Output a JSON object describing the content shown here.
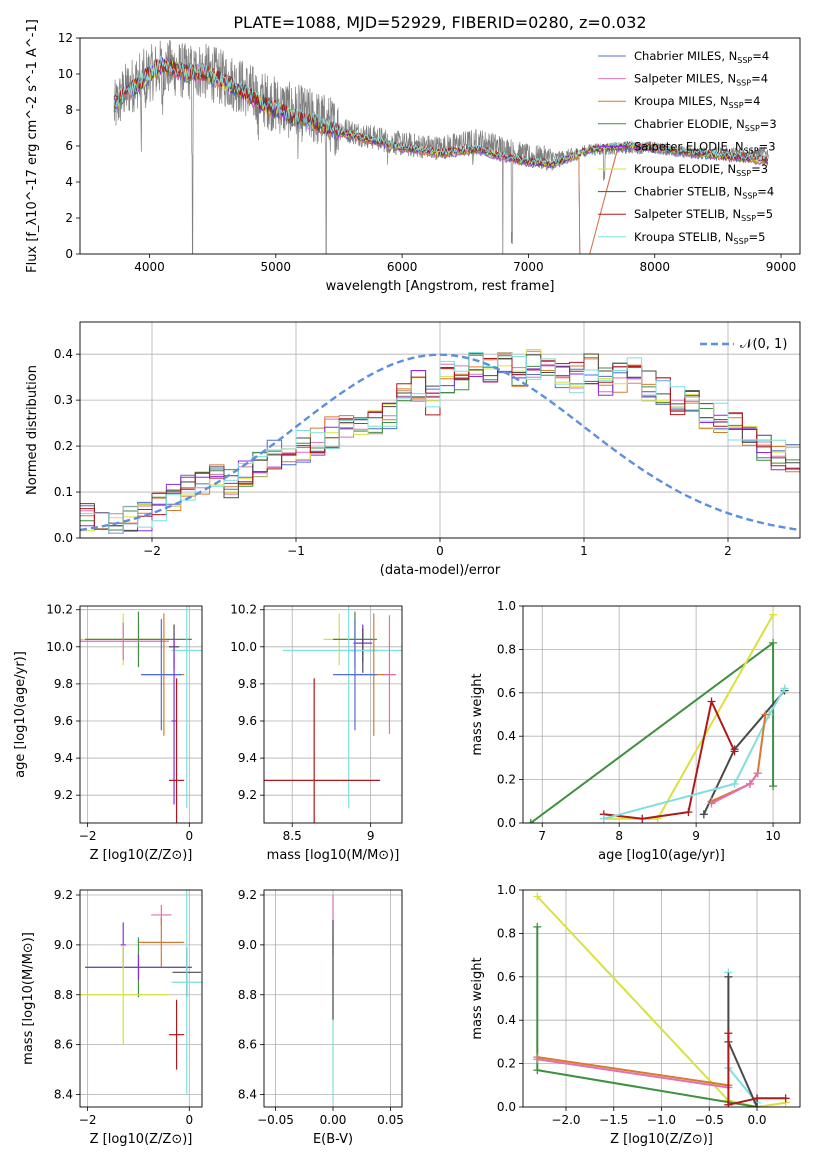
{
  "title": "PLATE=1088, MJD=52929, FIBERID=0280, z=0.032",
  "colors": {
    "Chabrier MILES": "#4f6fd1",
    "Salpeter MILES": "#e070b0",
    "Kroupa MILES": "#d77a2d",
    "Chabrier ELODIE": "#3f8f3f",
    "Salpeter ELODIE": "#8a2be2",
    "Kroupa ELODIE": "#d9e13c",
    "Chabrier STELIB": "#4a4a4a",
    "Salpeter STELIB": "#b0181c",
    "Kroupa STELIB": "#7fdede",
    "data": "#7f7f7f",
    "normal": "#5b8fe0"
  },
  "chart_data": [
    {
      "type": "line",
      "id": "spectrum",
      "xlabel": "wavelength [Angstrom, rest frame]",
      "ylabel": "Flux [f_λ10^-17 erg cm^-2 s^-1 A^-1]",
      "xlim": [
        3450,
        9150
      ],
      "ylim": [
        0,
        12
      ],
      "xticks": [
        4000,
        5000,
        6000,
        7000,
        8000,
        9000
      ],
      "yticks": [
        0,
        2,
        4,
        6,
        8,
        10,
        12
      ],
      "grid": false,
      "legend_position": "top-right",
      "legend": [
        {
          "label": "Chabrier MILES, N_SSP=4",
          "key": "Chabrier MILES"
        },
        {
          "label": "Salpeter MILES, N_SSP=4",
          "key": "Salpeter MILES"
        },
        {
          "label": "Kroupa MILES, N_SSP=4",
          "key": "Kroupa MILES"
        },
        {
          "label": "Chabrier ELODIE, N_SSP=3",
          "key": "Chabrier ELODIE"
        },
        {
          "label": "Salpeter ELODIE, N_SSP=3",
          "key": "Salpeter ELODIE"
        },
        {
          "label": "Kroupa ELODIE, N_SSP=3",
          "key": "Kroupa ELODIE"
        },
        {
          "label": "Chabrier STELIB, N_SSP=4",
          "key": "Chabrier STELIB"
        },
        {
          "label": "Salpeter STELIB, N_SSP=5",
          "key": "Salpeter STELIB"
        },
        {
          "label": "Kroupa STELIB, N_SSP=5",
          "key": "Kroupa STELIB"
        }
      ],
      "data_continuum": [
        [
          3720,
          8.0
        ],
        [
          3800,
          9.0
        ],
        [
          3900,
          9.6
        ],
        [
          4000,
          10.0
        ],
        [
          4100,
          10.4
        ],
        [
          4200,
          10.3
        ],
        [
          4300,
          10.1
        ],
        [
          4400,
          10.2
        ],
        [
          4500,
          10.0
        ],
        [
          4700,
          9.4
        ],
        [
          4900,
          8.6
        ],
        [
          5100,
          8.0
        ],
        [
          5300,
          7.6
        ],
        [
          5500,
          7.0
        ],
        [
          5700,
          6.6
        ],
        [
          6000,
          6.1
        ],
        [
          6300,
          5.9
        ],
        [
          6600,
          6.3
        ],
        [
          6800,
          5.9
        ],
        [
          7000,
          5.4
        ],
        [
          7200,
          5.3
        ],
        [
          7500,
          5.8
        ],
        [
          7800,
          5.9
        ],
        [
          8000,
          5.9
        ],
        [
          8300,
          5.6
        ],
        [
          8600,
          5.6
        ],
        [
          8900,
          5.6
        ]
      ],
      "model_continuum": [
        [
          3720,
          8.3
        ],
        [
          3800,
          8.9
        ],
        [
          3900,
          9.3
        ],
        [
          4000,
          10.0
        ],
        [
          4100,
          10.5
        ],
        [
          4200,
          10.3
        ],
        [
          4300,
          10.0
        ],
        [
          4400,
          10.1
        ],
        [
          4500,
          9.8
        ],
        [
          4700,
          9.2
        ],
        [
          4900,
          8.3
        ],
        [
          5100,
          7.7
        ],
        [
          5300,
          7.3
        ],
        [
          5500,
          6.8
        ],
        [
          5700,
          6.4
        ],
        [
          6000,
          5.9
        ],
        [
          6300,
          5.6
        ],
        [
          6600,
          5.8
        ],
        [
          6800,
          5.4
        ],
        [
          7000,
          5.1
        ],
        [
          7200,
          5.0
        ],
        [
          7500,
          5.8
        ],
        [
          7800,
          6.0
        ],
        [
          8000,
          5.9
        ],
        [
          8300,
          5.6
        ],
        [
          8600,
          5.4
        ],
        [
          8900,
          5.2
        ]
      ]
    },
    {
      "type": "line",
      "id": "residuals",
      "xlabel": "(data-model)/error",
      "ylabel": "Normed distribution",
      "xlim": [
        -2.5,
        2.5
      ],
      "ylim": [
        0,
        0.47
      ],
      "xticks": [
        -2,
        -1,
        0,
        1,
        2
      ],
      "yticks": [
        0.0,
        0.1,
        0.2,
        0.3,
        0.4
      ],
      "grid": true,
      "legend_position": "top-right",
      "legend_label": "𝒩(0, 1)",
      "bin_width": 0.1,
      "bins_start": -2.5,
      "base_hist": [
        0.04,
        0.035,
        0.03,
        0.035,
        0.05,
        0.07,
        0.09,
        0.11,
        0.13,
        0.14,
        0.12,
        0.14,
        0.16,
        0.18,
        0.19,
        0.2,
        0.21,
        0.23,
        0.24,
        0.26,
        0.25,
        0.27,
        0.31,
        0.33,
        0.3,
        0.35,
        0.34,
        0.38,
        0.37,
        0.39,
        0.36,
        0.38,
        0.37,
        0.36,
        0.35,
        0.37,
        0.34,
        0.35,
        0.36,
        0.33,
        0.32,
        0.3,
        0.29,
        0.27,
        0.26,
        0.24,
        0.22,
        0.2,
        0.18,
        0.17
      ]
    },
    {
      "type": "scatter",
      "id": "z-age",
      "xlabel": "Z [log10(Z/Z⊙)]",
      "ylabel": "age  [log10(age/yr)]",
      "xlim": [
        -2.15,
        0.25
      ],
      "ylim": [
        9.05,
        10.22
      ],
      "xticks": [
        -2,
        0
      ],
      "yticks": [
        9.2,
        9.4,
        9.6,
        9.8,
        10.0,
        10.2
      ],
      "grid": true,
      "points": [
        {
          "key": "Kroupa ELODIE",
          "x": -1.3,
          "xerr": 0.9,
          "y": 10.04,
          "yerr": 0.14
        },
        {
          "key": "Chabrier ELODIE",
          "x": -1.0,
          "xerr": 1.05,
          "y": 10.04,
          "yerr": 0.15
        },
        {
          "key": "Salpeter MILES",
          "x": -1.3,
          "xerr": 0.9,
          "y": 10.03,
          "yerr": 0.1
        },
        {
          "key": "Chabrier STELIB",
          "x": -0.3,
          "xerr": 0.1,
          "y": 10.0,
          "yerr": 0.12
        },
        {
          "key": "Kroupa STELIB",
          "x": -0.05,
          "xerr": 0.3,
          "y": 9.98,
          "yerr": 0.85
        },
        {
          "key": "Kroupa MILES",
          "x": -0.5,
          "xerr": 0.4,
          "y": 9.85,
          "yerr": 0.33
        },
        {
          "key": "Chabrier MILES",
          "x": -0.55,
          "xerr": 0.4,
          "y": 9.85,
          "yerr": 0.3
        },
        {
          "key": "Salpeter ELODIE",
          "x": -0.3,
          "xerr": 0.05,
          "y": 9.6,
          "yerr": 0.45
        },
        {
          "key": "Salpeter STELIB",
          "x": -0.25,
          "xerr": 0.15,
          "y": 9.28,
          "yerr": 0.55
        }
      ]
    },
    {
      "type": "scatter",
      "id": "mass-age",
      "xlabel": "mass [log10(M/M⊙)]",
      "ylabel": "",
      "xlim": [
        8.32,
        9.2
      ],
      "ylim": [
        9.05,
        10.22
      ],
      "xticks": [
        8.5,
        9.0
      ],
      "yticks": [
        9.2,
        9.4,
        9.6,
        9.8,
        10.0,
        10.2
      ],
      "grid": true,
      "points": [
        {
          "key": "Kroupa ELODIE",
          "x": 8.8,
          "xerr": 0.1,
          "y": 10.04,
          "yerr": 0.14
        },
        {
          "key": "Chabrier ELODIE",
          "x": 8.9,
          "xerr": 0.14,
          "y": 10.04,
          "yerr": 0.15
        },
        {
          "key": "Salpeter ELODIE",
          "x": 8.95,
          "xerr": 0.06,
          "y": 10.02,
          "yerr": 0.1
        },
        {
          "key": "Chabrier STELIB",
          "x": 8.95,
          "xerr": 0.09,
          "y": 9.98,
          "yerr": 0.12
        },
        {
          "key": "Kroupa STELIB",
          "x": 8.86,
          "xerr": 0.42,
          "y": 9.98,
          "yerr": 0.85
        },
        {
          "key": "Kroupa MILES",
          "x": 9.02,
          "xerr": 0.14,
          "y": 9.85,
          "yerr": 0.33
        },
        {
          "key": "Salpeter MILES",
          "x": 9.12,
          "xerr": 0.04,
          "y": 9.85,
          "yerr": 0.32
        },
        {
          "key": "Salpeter STELIB",
          "x": 8.64,
          "xerr": 0.42,
          "y": 9.28,
          "yerr": 0.55
        },
        {
          "key": "Chabrier MILES",
          "x": 8.9,
          "xerr": 0.14,
          "y": 9.85,
          "yerr": 0.3
        }
      ]
    },
    {
      "type": "line",
      "id": "age-weight",
      "xlabel": "age  [log10(age/yr)]",
      "ylabel": "mass weight",
      "xlim": [
        6.75,
        10.35
      ],
      "ylim": [
        0,
        1.0
      ],
      "xticks": [
        7,
        8,
        9,
        10
      ],
      "yticks": [
        0.0,
        0.2,
        0.4,
        0.6,
        0.8,
        1.0
      ],
      "grid": true,
      "series": [
        {
          "key": "Chabrier ELODIE",
          "x": [
            6.85,
            10.0,
            10.0
          ],
          "y": [
            0.0,
            0.83,
            0.17
          ]
        },
        {
          "key": "Kroupa ELODIE",
          "x": [
            7.8,
            8.5,
            10.0
          ],
          "y": [
            0.02,
            0.02,
            0.96
          ]
        },
        {
          "key": "Chabrier STELIB",
          "x": [
            9.1,
            9.5,
            10.15
          ],
          "y": [
            0.04,
            0.34,
            0.61
          ]
        },
        {
          "key": "Salpeter STELIB",
          "x": [
            7.8,
            8.3,
            8.9,
            9.2,
            9.5
          ],
          "y": [
            0.04,
            0.02,
            0.05,
            0.56,
            0.33
          ]
        },
        {
          "key": "Kroupa STELIB",
          "x": [
            7.8,
            9.5,
            9.95,
            10.15
          ],
          "y": [
            0.02,
            0.18,
            0.5,
            0.62
          ]
        },
        {
          "key": "Kroupa MILES",
          "x": [
            9.2,
            9.7,
            9.8,
            9.9
          ],
          "y": [
            0.1,
            0.18,
            0.23,
            0.5
          ]
        },
        {
          "key": "Salpeter MILES",
          "x": [
            9.2,
            9.7,
            9.8
          ],
          "y": [
            0.09,
            0.18,
            0.23
          ]
        }
      ]
    },
    {
      "type": "scatter",
      "id": "z-mass",
      "xlabel": "Z [log10(Z/Z⊙)]",
      "ylabel": "mass [log10(M/M⊙)]",
      "xlim": [
        -2.15,
        0.25
      ],
      "ylim": [
        8.35,
        9.22
      ],
      "xticks": [
        -2,
        0
      ],
      "yticks": [
        8.4,
        8.6,
        8.8,
        9.0,
        9.2
      ],
      "grid": true,
      "points": [
        {
          "key": "Salpeter MILES",
          "x": -0.55,
          "xerr": 0.2,
          "y": 9.12,
          "yerr": 0.04
        },
        {
          "key": "Salpeter ELODIE",
          "x": -1.3,
          "xerr": 0.05,
          "y": 9.0,
          "yerr": 0.09
        },
        {
          "key": "Kroupa MILES",
          "x": -0.55,
          "xerr": 0.45,
          "y": 9.01,
          "yerr": 0.1
        },
        {
          "key": "Chabrier ELODIE",
          "x": -1.0,
          "xerr": 1.05,
          "y": 8.91,
          "yerr": 0.12
        },
        {
          "key": "Salpeter ELODIE",
          "x": -1.0,
          "xerr": 1.05,
          "y": 8.91,
          "yerr": 0.05
        },
        {
          "key": "Chabrier STELIB",
          "x": -0.05,
          "xerr": 0.28,
          "y": 8.89,
          "yerr": 0.1
        },
        {
          "key": "Kroupa STELIB",
          "x": -0.05,
          "xerr": 0.3,
          "y": 8.85,
          "yerr": 0.45
        },
        {
          "key": "Kroupa ELODIE",
          "x": -1.3,
          "xerr": 0.9,
          "y": 8.8,
          "yerr": 0.2
        },
        {
          "key": "Salpeter STELIB",
          "x": -0.25,
          "xerr": 0.15,
          "y": 8.64,
          "yerr": 0.14
        }
      ]
    },
    {
      "type": "scatter",
      "id": "ebv-mass",
      "xlabel": "E(B-V)",
      "ylabel": "",
      "xlim": [
        -0.06,
        0.06
      ],
      "ylim": [
        8.35,
        9.22
      ],
      "xticks": [
        -0.05,
        0.0,
        0.05
      ],
      "xticklabels": [
        "−0.05",
        "0.00",
        "0.05"
      ],
      "yticks": [
        8.4,
        8.6,
        8.8,
        9.0,
        9.2
      ],
      "grid": true,
      "points": [
        {
          "key": "Salpeter MILES",
          "x": 0.0,
          "xerr": 0,
          "y": 9.08,
          "yerr": 0.12
        },
        {
          "key": "Kroupa STELIB",
          "x": 0.0,
          "xerr": 0,
          "y": 8.7,
          "yerr": 0.33
        },
        {
          "key": "Chabrier STELIB",
          "x": 0.0,
          "xerr": 0,
          "y": 8.9,
          "yerr": 0.2
        }
      ]
    },
    {
      "type": "line",
      "id": "z-weight",
      "xlabel": "Z [log10(Z/Z⊙)]",
      "ylabel": "mass weight",
      "xlim": [
        -2.45,
        0.45
      ],
      "ylim": [
        0,
        1.0
      ],
      "xticks": [
        -2.0,
        -1.5,
        -1.0,
        -0.5,
        0.0
      ],
      "xticklabels": [
        "−2.0",
        "−1.5",
        "−1.0",
        "−0.5",
        "0.0"
      ],
      "yticks": [
        0.0,
        0.2,
        0.4,
        0.6,
        0.8,
        1.0
      ],
      "grid": true,
      "series": [
        {
          "key": "Kroupa ELODIE",
          "x": [
            -2.3,
            -0.3,
            0.0,
            0.3
          ],
          "y": [
            0.97,
            0.03,
            0.0,
            0.02
          ]
        },
        {
          "key": "Chabrier ELODIE",
          "x": [
            -2.3,
            -2.3,
            0.0,
            0.0
          ],
          "y": [
            0.83,
            0.17,
            0.0,
            0.04
          ]
        },
        {
          "key": "Kroupa MILES",
          "x": [
            -2.3,
            -0.3
          ],
          "y": [
            0.23,
            0.1
          ]
        },
        {
          "key": "Salpeter MILES",
          "x": [
            -2.3,
            -0.3
          ],
          "y": [
            0.22,
            0.09
          ]
        },
        {
          "key": "Kroupa STELIB",
          "x": [
            -0.3,
            -0.3,
            0.0
          ],
          "y": [
            0.62,
            0.18,
            0.02
          ]
        },
        {
          "key": "Chabrier STELIB",
          "x": [
            -0.3,
            -0.3,
            0.0
          ],
          "y": [
            0.6,
            0.3,
            0.0
          ]
        },
        {
          "key": "Salpeter STELIB",
          "x": [
            -0.3,
            -0.3,
            0.0,
            0.3
          ],
          "y": [
            0.34,
            0.01,
            0.04,
            0.04
          ]
        }
      ]
    }
  ]
}
